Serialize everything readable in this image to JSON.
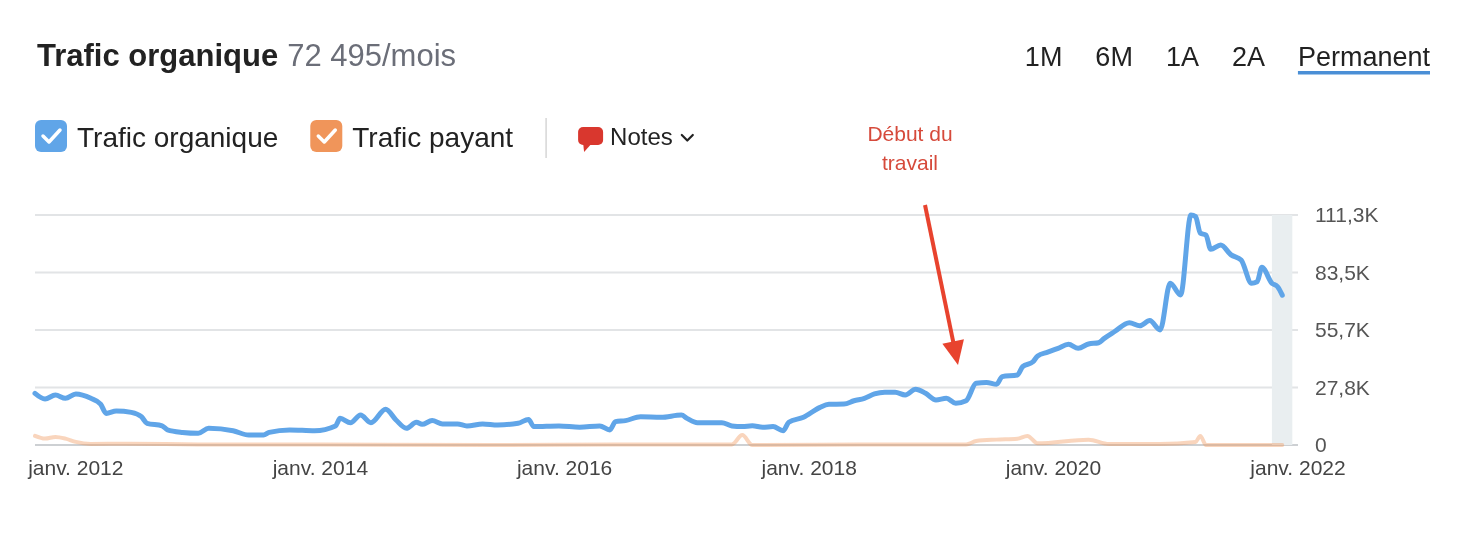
{
  "chart_data": {
    "type": "line",
    "title": "Trafic organique",
    "subtitle": "72 495/mois",
    "series": [
      {
        "name": "Trafic organique",
        "color": "#60a5e8",
        "x": [
          "2011-09-01",
          "2011-10-01",
          "2011-11-01",
          "2011-12-01",
          "2012-01-01",
          "2012-02-15",
          "2012-03-15",
          "2012-04-01",
          "2012-05-01",
          "2012-06-15",
          "2012-07-15",
          "2012-08-01",
          "2012-09-15",
          "2012-10-01",
          "2012-11-15",
          "2013-01-01",
          "2013-02-01",
          "2013-04-15",
          "2013-06-01",
          "2013-07-15",
          "2013-08-01",
          "2013-10-01",
          "2013-12-15",
          "2014-02-15",
          "2014-03-01",
          "2014-04-01",
          "2014-05-01",
          "2014-06-01",
          "2014-07-15",
          "2014-08-15",
          "2014-09-15",
          "2014-10-15",
          "2014-11-01",
          "2014-12-01",
          "2015-01-01",
          "2015-02-15",
          "2015-03-15",
          "2015-05-01",
          "2015-06-15",
          "2015-08-15",
          "2015-09-15",
          "2015-10-01",
          "2015-12-15",
          "2016-02-15",
          "2016-04-15",
          "2016-05-15",
          "2016-06-01",
          "2016-07-01",
          "2016-08-15",
          "2016-10-15",
          "2016-12-15",
          "2017-01-01",
          "2017-02-01",
          "2017-04-15",
          "2017-05-15",
          "2017-06-15",
          "2017-07-15",
          "2017-08-15",
          "2017-09-15",
          "2017-10-15",
          "2017-11-01",
          "2017-12-15",
          "2018-02-01",
          "2018-03-01",
          "2018-04-15",
          "2018-05-15",
          "2018-06-15",
          "2018-07-15",
          "2018-08-15",
          "2018-09-15",
          "2018-10-15",
          "2018-11-15",
          "2018-12-15",
          "2019-01-15",
          "2019-02-15",
          "2019-03-15",
          "2019-04-15",
          "2019-05-15",
          "2019-06-15",
          "2019-07-15",
          "2019-08-01",
          "2019-09-15",
          "2019-10-01",
          "2019-11-01",
          "2019-11-15",
          "2019-12-15",
          "2020-01-15",
          "2020-02-15",
          "2020-03-15",
          "2020-04-15",
          "2020-05-15",
          "2020-06-01",
          "2020-07-01",
          "2020-08-15",
          "2020-09-15",
          "2020-10-15",
          "2020-11-15",
          "2020-12-15",
          "2021-01-15",
          "2021-02-15",
          "2021-03-01",
          "2021-03-15",
          "2021-04-01",
          "2021-04-15",
          "2021-05-15",
          "2021-06-15",
          "2021-07-15",
          "2021-08-15",
          "2021-09-01",
          "2021-09-15",
          "2021-10-15",
          "2021-11-01",
          "2021-11-15"
        ],
        "values": [
          25000,
          22300,
          24200,
          22600,
          24700,
          22600,
          19800,
          15300,
          16500,
          15800,
          13700,
          10500,
          9300,
          7300,
          6100,
          5700,
          8100,
          6900,
          4800,
          4800,
          6100,
          7300,
          6900,
          9200,
          12900,
          10800,
          14500,
          10800,
          17300,
          12100,
          8100,
          11000,
          10000,
          11800,
          10200,
          10200,
          9200,
          10200,
          9700,
          10500,
          12400,
          8900,
          9200,
          8600,
          9200,
          7300,
          11300,
          11800,
          13700,
          13400,
          14500,
          12900,
          10800,
          10800,
          9200,
          8900,
          9300,
          8600,
          8900,
          6900,
          11000,
          13400,
          18100,
          19700,
          19800,
          21400,
          22600,
          24700,
          25500,
          25500,
          24200,
          27000,
          25000,
          21800,
          22600,
          20200,
          21400,
          29900,
          30300,
          29400,
          33100,
          33900,
          37900,
          40300,
          43100,
          44900,
          46800,
          48700,
          46800,
          48900,
          49500,
          51600,
          54800,
          59200,
          57700,
          60200,
          55700,
          78300,
          72600,
          111300,
          110500,
          102500,
          101600,
          94700,
          96800,
          92000,
          89500,
          78300,
          79000,
          86000,
          78300,
          76600,
          72500
        ]
      },
      {
        "name": "Trafic payant",
        "color": "#f0955a",
        "x": [
          "2011-09-01",
          "2011-10-01",
          "2011-11-01",
          "2011-12-01",
          "2012-01-01",
          "2012-02-15",
          "2012-06-01",
          "2013-01-01",
          "2014-01-01",
          "2015-06-01",
          "2016-06-01",
          "2017-05-15",
          "2017-06-15",
          "2017-07-15",
          "2018-06-01",
          "2019-04-15",
          "2019-05-15",
          "2019-07-15",
          "2019-09-15",
          "2019-10-15",
          "2019-11-15",
          "2020-04-15",
          "2020-06-15",
          "2020-11-15",
          "2021-03-01",
          "2021-03-15",
          "2021-04-01",
          "2021-11-15"
        ],
        "values": [
          4400,
          3100,
          3900,
          3100,
          1500,
          500,
          600,
          300,
          200,
          0,
          300,
          300,
          4800,
          0,
          200,
          300,
          1900,
          2600,
          3000,
          4400,
          800,
          2600,
          500,
          500,
          1500,
          4400,
          0,
          0
        ]
      }
    ],
    "xlim": [
      "2011-09-01",
      "2022-01-01"
    ],
    "xticks": [
      {
        "value": "2012-01-01",
        "label": "janv. 2012"
      },
      {
        "value": "2014-01-01",
        "label": "janv. 2014"
      },
      {
        "value": "2016-01-01",
        "label": "janv. 2016"
      },
      {
        "value": "2018-01-01",
        "label": "janv. 2018"
      },
      {
        "value": "2020-01-01",
        "label": "janv. 2020"
      },
      {
        "value": "2022-01-01",
        "label": "janv. 2022"
      }
    ],
    "ylim": [
      0,
      111300
    ],
    "yticks": [
      0,
      {
        "value": 27825,
        "label": "27,8K"
      },
      {
        "value": 55650,
        "label": "55,7K"
      },
      {
        "value": 83475,
        "label": "83,5K"
      },
      {
        "value": 111300,
        "label": "111,3K"
      }
    ],
    "grid": "y",
    "legend": "top left",
    "bands": [
      {
        "axis": "x",
        "from": "2021-10-15",
        "to": "2021-12-15",
        "color": "#e9eef0"
      }
    ],
    "annotations": [
      "1M",
      "6M",
      "1A",
      "2A",
      "Permanent",
      "Notes",
      "Début du travail"
    ]
  }
}
